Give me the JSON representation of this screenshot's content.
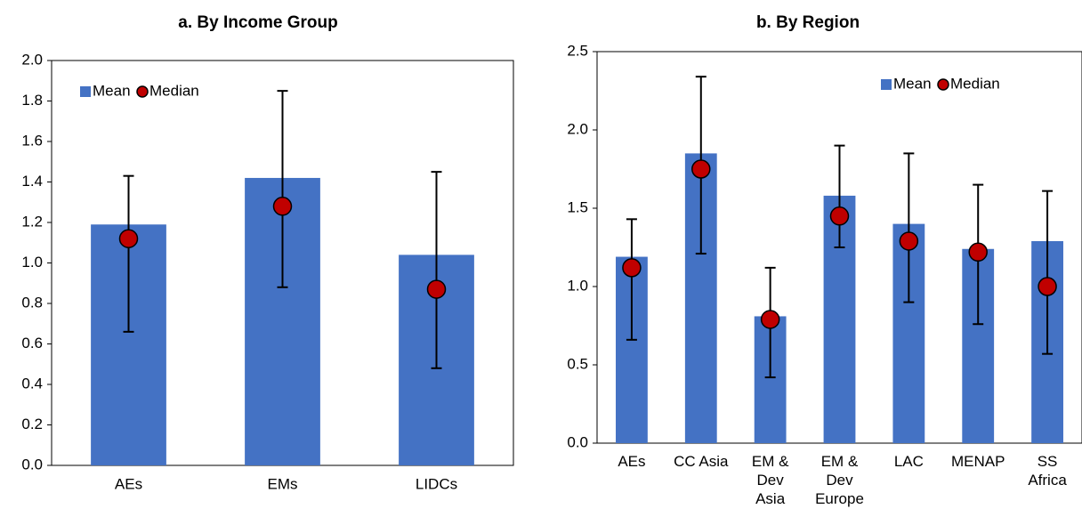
{
  "chart_data": [
    {
      "type": "bar",
      "title": "a. By Income Group",
      "categories": [
        "AEs",
        "EMs",
        "LIDCs"
      ],
      "series": [
        {
          "name": "Mean",
          "color": "#4472c4",
          "values": [
            1.19,
            1.42,
            1.04
          ]
        },
        {
          "name": "Median",
          "color": "#c00000",
          "values": [
            1.12,
            1.28,
            0.87
          ]
        }
      ],
      "error_low": [
        0.66,
        0.88,
        0.48
      ],
      "error_high": [
        1.43,
        1.85,
        1.45
      ],
      "ylim": [
        0,
        2.0
      ],
      "yticks": [
        {
          "value": 0,
          "label": "0.0"
        },
        0.2,
        0.4,
        0.6,
        0.8,
        {
          "value": 1,
          "label": "1.0"
        },
        1.2,
        1.4,
        1.6,
        1.8,
        {
          "value": 2,
          "label": "2.0"
        }
      ],
      "legend": "upper left"
    },
    {
      "type": "bar",
      "title": "b. By Region",
      "categories": [
        "AEs",
        "CC Asia",
        "EM & Dev Asia",
        "EM & Dev Europe",
        "LAC",
        "MENAP",
        "SS Africa"
      ],
      "series": [
        {
          "name": "Mean",
          "color": "#4472c4",
          "values": [
            1.19,
            1.85,
            0.81,
            1.58,
            1.4,
            1.24,
            1.29
          ]
        },
        {
          "name": "Median",
          "color": "#c00000",
          "values": [
            1.12,
            1.75,
            0.79,
            1.45,
            1.29,
            1.22,
            1.0
          ]
        }
      ],
      "error_low": [
        0.66,
        1.21,
        0.42,
        1.25,
        0.9,
        0.76,
        0.57
      ],
      "error_high": [
        1.43,
        2.34,
        1.12,
        1.9,
        1.85,
        1.65,
        1.61
      ],
      "ylim": [
        0,
        2.5
      ],
      "yticks": [
        {
          "value": 0,
          "label": "0.0"
        },
        0.5,
        {
          "value": 1,
          "label": "1.0"
        },
        1.5,
        {
          "value": 2,
          "label": "2.0"
        },
        2.5
      ],
      "legend": "upper right"
    }
  ]
}
